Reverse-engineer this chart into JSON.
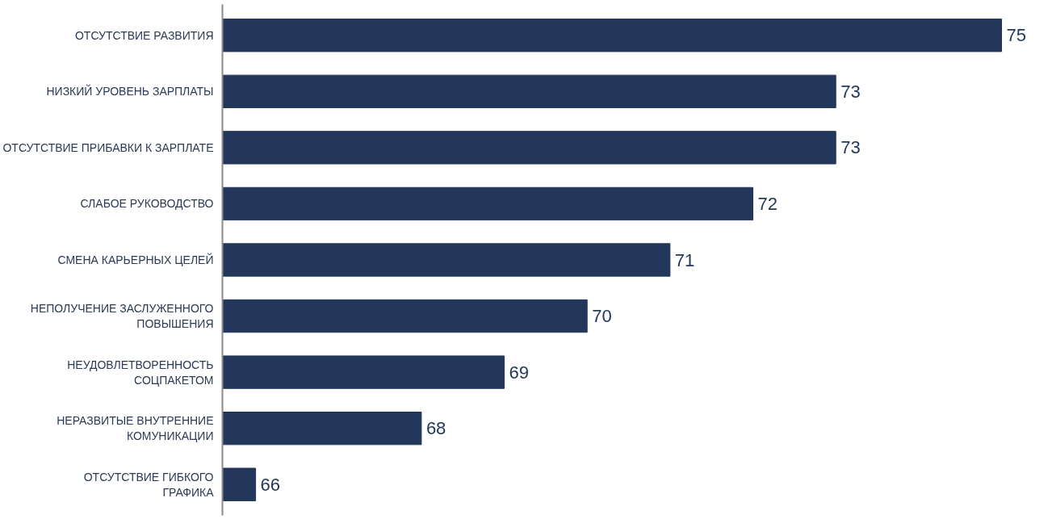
{
  "chart_data": {
    "type": "bar",
    "orientation": "horizontal",
    "categories": [
      "ОТСУТСТВИЕ РАЗВИТИЯ",
      "НИЗКИЙ УРОВЕНЬ ЗАРПЛАТЫ",
      "ОТСУТСТВИЕ ПРИБАВКИ К ЗАРПЛАТЕ",
      "СЛАБОЕ РУКОВОДСТВО",
      "СМЕНА КАРЬЕРНЫХ ЦЕЛЕЙ",
      "НЕПОЛУЧЕНИЕ ЗАСЛУЖЕННОГО\nПОВЫШЕНИЯ",
      "НЕУДОВЛЕТВОРЕННОСТЬ\nСОЦПАКЕТОМ",
      "НЕРАЗВИТЫЕ ВНУТРЕННИЕ\nКОМУНИКАЦИИ",
      "ОТСУТСТВИЕ ГИБКОГО\nГРАФИКА"
    ],
    "values": [
      75,
      73,
      73,
      72,
      71,
      70,
      69,
      68,
      66
    ],
    "color": "#22375a",
    "xlim": [
      65.6,
      75
    ],
    "data_labels": true,
    "tick_labels": "y",
    "grid": false
  }
}
